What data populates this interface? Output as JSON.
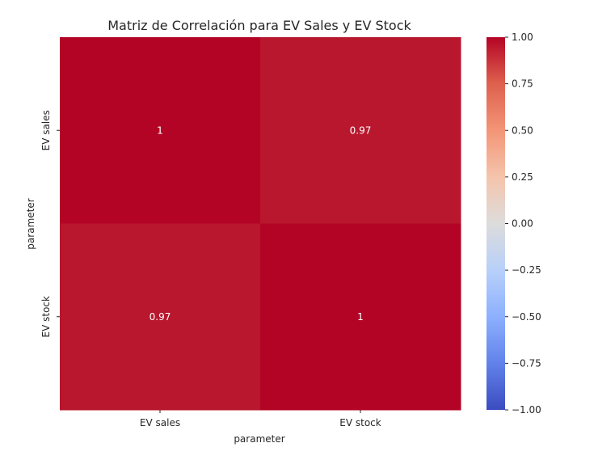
{
  "chart_data": {
    "type": "heatmap",
    "title": "Matriz de Correlación para EV Sales y EV Stock",
    "xlabel": "parameter",
    "ylabel": "parameter",
    "x_categories": [
      "EV sales",
      "EV stock"
    ],
    "y_categories": [
      "EV sales",
      "EV stock"
    ],
    "values": [
      [
        1.0,
        0.97
      ],
      [
        0.97,
        1.0
      ]
    ],
    "cell_labels": [
      [
        "1",
        "0.97"
      ],
      [
        "0.97",
        "1"
      ]
    ],
    "colormap": "coolwarm",
    "colorbar": {
      "range": [
        -1.0,
        1.0
      ],
      "ticks": [
        1.0,
        0.75,
        0.5,
        0.25,
        0.0,
        -0.25,
        -0.5,
        -0.75,
        -1.0
      ],
      "tick_labels": [
        "1.00",
        "0.75",
        "0.50",
        "0.25",
        "0.00",
        "−0.25",
        "−0.50",
        "−0.75",
        "−1.00"
      ],
      "colors": {
        "low": "#3b4cc0",
        "mid": "#dddcdc",
        "high": "#b40426"
      }
    },
    "cell_colors": [
      [
        "#b40426",
        "#b8172d"
      ],
      [
        "#b8172d",
        "#b40426"
      ]
    ],
    "annotation_color": "#ffffff"
  }
}
